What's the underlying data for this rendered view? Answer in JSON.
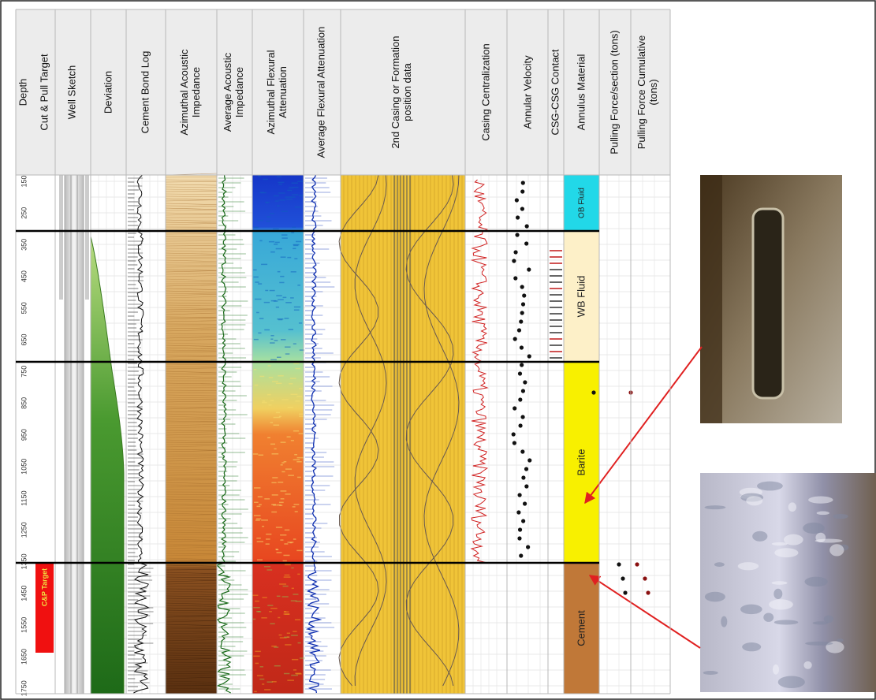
{
  "header": {
    "columns": [
      {
        "lines": [
          "Depth"
        ]
      },
      {
        "lines": [
          "Cut & Pull Target"
        ]
      },
      {
        "lines": [
          "Well Sketch"
        ]
      },
      {
        "lines": [
          "Deviation"
        ]
      },
      {
        "lines": [
          "Cement Bond Log"
        ]
      },
      {
        "lines": [
          "Azimuthal Acoustic",
          "Impedance"
        ]
      },
      {
        "lines": [
          "Average Acoustic",
          "Impedance"
        ]
      },
      {
        "lines": [
          "Azimuthal Flexural",
          "Attenuation"
        ]
      },
      {
        "lines": [
          "Average Flexural Attenuation"
        ]
      },
      {
        "lines": [
          "2nd Casing or Formation",
          "position data"
        ]
      },
      {
        "lines": [
          "Casing Centralization"
        ]
      },
      {
        "lines": [
          "Annular Velocity"
        ]
      },
      {
        "lines": [
          "CSG-CSG Contact"
        ]
      },
      {
        "lines": [
          "Annulus Material"
        ]
      },
      {
        "lines": [
          "Pulling Force/section (tons)"
        ]
      },
      {
        "lines": [
          "Pulling Force Cumulative",
          "(tons)"
        ]
      }
    ]
  },
  "depth_labels": [
    150,
    250,
    350,
    450,
    550,
    650,
    750,
    850,
    950,
    1050,
    1150,
    1250,
    1350,
    1450,
    1550,
    1650,
    1750
  ],
  "cut_pull_target": "C&P Target",
  "annulus_zones": [
    "OB Fluid",
    "WB Fluid",
    "Barite",
    "Cement"
  ]
}
